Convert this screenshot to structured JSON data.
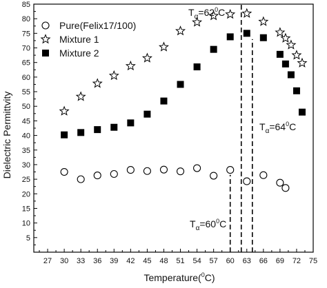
{
  "chart_data": {
    "type": "scatter",
    "xlabel": {
      "main": "Temperature(",
      "sup": "0",
      "tail": "C)"
    },
    "ylabel": "Dielectric Permittvity",
    "xlim": [
      24.5,
      75
    ],
    "ylim": [
      0,
      85
    ],
    "x_ticks": [
      27,
      30,
      33,
      36,
      39,
      42,
      45,
      48,
      51,
      54,
      57,
      60,
      63,
      66,
      69,
      72,
      75
    ],
    "y_ticks": [
      5,
      10,
      15,
      20,
      25,
      30,
      35,
      40,
      45,
      50,
      55,
      60,
      65,
      70,
      75,
      80,
      85
    ],
    "grid": false,
    "legend_position": "top-left",
    "series": [
      {
        "name": "Pure(Felix17/100)",
        "marker": "open-circle",
        "points": [
          [
            30,
            27.5
          ],
          [
            33,
            25
          ],
          [
            36,
            26.3
          ],
          [
            39,
            26.8
          ],
          [
            42,
            28.2
          ],
          [
            45,
            27.8
          ],
          [
            48,
            28.3
          ],
          [
            51,
            27.7
          ],
          [
            54,
            28.8
          ],
          [
            57,
            26.2
          ],
          [
            60,
            28.2
          ],
          [
            63,
            24.3
          ],
          [
            66,
            26.4
          ],
          [
            69,
            23.8
          ],
          [
            70,
            22
          ]
        ]
      },
      {
        "name": "Mixture 1",
        "marker": "open-star",
        "points": [
          [
            30,
            48.3
          ],
          [
            33,
            53.3
          ],
          [
            36,
            57.8
          ],
          [
            39,
            60.5
          ],
          [
            42,
            63.8
          ],
          [
            45,
            66.5
          ],
          [
            48,
            70.3
          ],
          [
            51,
            75.8
          ],
          [
            54,
            78.8
          ],
          [
            57,
            81
          ],
          [
            60,
            81.5
          ],
          [
            63,
            81.8
          ],
          [
            66,
            79
          ],
          [
            69,
            75.3
          ],
          [
            70,
            73.3
          ],
          [
            71,
            71
          ],
          [
            72,
            67.5
          ],
          [
            73,
            64.8
          ]
        ]
      },
      {
        "name": "Mixture 2",
        "marker": "filled-square",
        "points": [
          [
            30,
            40.2
          ],
          [
            33,
            41
          ],
          [
            36,
            42
          ],
          [
            39,
            42.8
          ],
          [
            42,
            44.3
          ],
          [
            45,
            47.3
          ],
          [
            48,
            51.8
          ],
          [
            51,
            57.5
          ],
          [
            54,
            63.5
          ],
          [
            57,
            69.5
          ],
          [
            60,
            73.8
          ],
          [
            63,
            75
          ],
          [
            66,
            73.5
          ],
          [
            69,
            67.8
          ],
          [
            70,
            64.5
          ],
          [
            71,
            60.8
          ],
          [
            72,
            55.3
          ],
          [
            73,
            48
          ]
        ]
      }
    ],
    "annotations": [
      {
        "x": 60,
        "y_from": 0,
        "y_to": 26.5,
        "label_pre": "T",
        "sub": "α",
        "label_mid": "=60",
        "sup": "0",
        "label_post": "C"
      },
      {
        "x": 62,
        "y_from": 0,
        "y_to": 85,
        "label_pre": "T",
        "sub": "α",
        "label_mid": "=62",
        "sup": "0",
        "label_post": "C"
      },
      {
        "x": 64,
        "y_from": 0,
        "y_to": 73,
        "label_pre": "T",
        "sub": "α",
        "label_mid": "=64",
        "sup": "0",
        "label_post": "C"
      }
    ]
  }
}
